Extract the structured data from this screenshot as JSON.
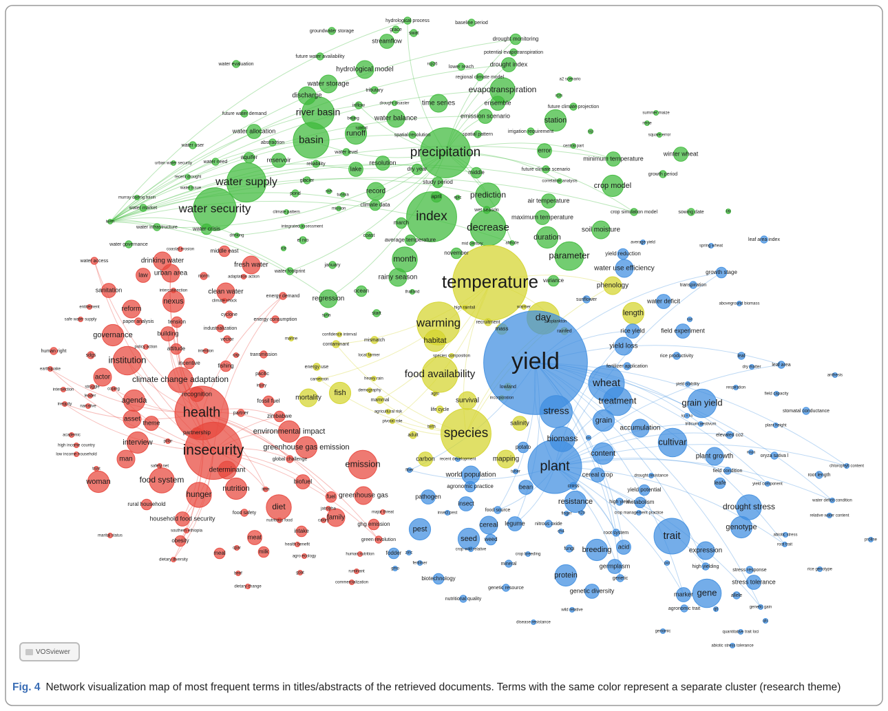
{
  "network": {
    "clusters": [
      {
        "color": "#e8463c",
        "terms": [
          "water access",
          "coastal erosion",
          "middle east",
          "drinking water",
          "fresh water",
          "law",
          "urban area",
          "norm",
          "adaptation action",
          "sanitation",
          "interconnection",
          "clean water",
          "energy demand",
          "reform",
          "nexus",
          "climate shock",
          "entitlement",
          "paper analysis",
          "tension",
          "cyclone",
          "energy consumption",
          "safe water supply",
          "industrialization",
          "governance",
          "building",
          "vector",
          "policy action",
          "attitude",
          "human right",
          "sdgs",
          "institution",
          "intention",
          "cap",
          "transmission",
          "incentive",
          "fishing",
          "earthquake",
          "actor",
          "climate change adaptation",
          "pacific",
          "injury",
          "struggle",
          "coping",
          "intersection",
          "leader",
          "agenda",
          "recognition",
          "fossil fuel",
          "inequity",
          "narrative",
          "health",
          "partner",
          "asset",
          "theme",
          "zimbabwe",
          "academic",
          "high income country",
          "interview",
          "pillar",
          "partnership",
          "environmental impact",
          "low income household",
          "insecurity",
          "greenhouse gas emission",
          "man",
          "safety net",
          "global challenge",
          "trust",
          "determinant",
          "woman",
          "food system",
          "nutrition",
          "item",
          "biofuel",
          "rural household",
          "hunger",
          "diet",
          "food safety",
          "household food security",
          "nutritious food",
          "southern ethiopia",
          "marital status",
          "intake",
          "meat",
          "obesity",
          "health benefit",
          "cpar",
          "meal",
          "milk",
          "agro ecology",
          "dietary diversity",
          "goat",
          "beef",
          "dietary change",
          "emission",
          "greenhouse gas",
          "fuel",
          "jatropha",
          "family",
          "calory",
          "major threat",
          "ghg emission",
          "green revolution",
          "human nutrition",
          "ruminant",
          "commercialization"
        ]
      },
      {
        "color": "#3dba3a",
        "terms": [
          "hydrological process",
          "grace",
          "swat",
          "groundwater storage",
          "baseline period",
          "streamflow",
          "drought monitoring",
          "potential evapotranspiration",
          "future water availability",
          "water evaluation",
          "rcp26",
          "lower reach",
          "drought index",
          "hydrological model",
          "regional climate model",
          "a2 scenario",
          "water storage",
          "tributary",
          "evapotranspiration",
          "rcm",
          "discharge",
          "drought disaster",
          "ensemble",
          "future climate projection",
          "inflow",
          "time series",
          "river basin",
          "future water demand",
          "beijing",
          "water balance",
          "emission scenario",
          "station",
          "summer maize",
          "water allocation",
          "runoff",
          "spatial",
          "spatial resolution",
          "spatial pattern",
          "irrigation requirement",
          "rmse",
          "ncp",
          "abstraction",
          "basin",
          "square error",
          "water user",
          "aquifer",
          "reservoir",
          "water level",
          "reliability",
          "resolution",
          "precipitation",
          "error",
          "central part",
          "winter wheat",
          "minimum temperature",
          "urban water security",
          "water need",
          "glacier",
          "dry year",
          "lake",
          "middle",
          "future climate scenario",
          "growth period",
          "recent drought",
          "water supply",
          "study period",
          "correlation analysis",
          "crop model",
          "water issue",
          "pond",
          "rwh",
          "record",
          "prediction",
          "murray darling basin",
          "tunisia",
          "april",
          "epic",
          "air temperature",
          "climate data",
          "wet season",
          "water market",
          "mission",
          "water security",
          "climate pattern",
          "crop simulation model",
          "sowing date",
          "lai",
          "index",
          "iwrm",
          "maximum temperature",
          "water infrastructure",
          "water crisis",
          "integrated assessment",
          "march",
          "decrease",
          "soil moisture",
          "drinking",
          "coast",
          "el nio",
          "average temperature",
          "duration",
          "mid century",
          "altitude",
          "water governance",
          "ice",
          "november",
          "parameter",
          "month",
          "water footprint",
          "january",
          "rainy season",
          "variance",
          "thailand",
          "ocean",
          "regression",
          "start",
          "syria"
        ]
      },
      {
        "color": "#d4d42c",
        "terms": [
          "temperature",
          "warming",
          "day",
          "high rainfall",
          "recruitment",
          "warmer",
          "zooplankton",
          "habitat",
          "mass",
          "rainfed",
          "confidence interval",
          "marine",
          "contaminant",
          "mismatch",
          "local farmer",
          "species composition",
          "energy use",
          "food availability",
          "cameroon",
          "heavy rain",
          "lowland",
          "mortality",
          "fish",
          "demography",
          "mammal",
          "agro",
          "survival",
          "incorporation",
          "life cycle",
          "agricultural risk",
          "pivotal role",
          "species",
          "salinity",
          "adult",
          "birth",
          "length",
          "phenology",
          "mapping",
          "carbon"
        ]
      },
      {
        "color": "#3f8ee0",
        "terms": [
          "yield",
          "average yield",
          "spring wheat",
          "leaf area index",
          "yield reduction",
          "water use efficiency",
          "growth stage",
          "transpiration",
          "sunflower",
          "water deficit",
          "aboveground biomass",
          "noe",
          "rice yield",
          "field experiment",
          "yield loss",
          "leaf",
          "rice productivity",
          "dry matter",
          "leaf area",
          "anthesis",
          "fertilizer application",
          "wheat",
          "yield stability",
          "respiration",
          "treatment",
          "grain yield",
          "field capacity",
          "stress",
          "grain",
          "kg n ha",
          "triticum aestivum",
          "stomatal conductance",
          "accumulation",
          "plant height",
          "biomass",
          "soc",
          "elevated co2",
          "cultivar",
          "content",
          "plant growth",
          "oryza sativa l",
          "mapa",
          "chlorophyll content",
          "potato",
          "plant",
          "field condition",
          "root length",
          "recent development",
          "fiber",
          "tuber",
          "world population",
          "cereal crop",
          "drought resistance",
          "leafe",
          "yield component",
          "agronomic practice",
          "cross",
          "bean",
          "yield potential",
          "pathogen",
          "water deficit condition",
          "resistance",
          "metabolism",
          "high yield",
          "insect",
          "drought stress",
          "food source",
          "insect pest",
          "finger",
          "n2o",
          "crop management practice",
          "relative water content",
          "legume",
          "nitrous oxide",
          "pest",
          "cereal",
          "ch4",
          "genotype",
          "root system",
          "trait",
          "abiotic stress",
          "seed",
          "weed",
          "proline",
          "root trait",
          "crop wild relative",
          "fodder",
          "zinc",
          "crop breeding",
          "breeding",
          "acid",
          "fungi",
          "expression",
          "mineral",
          "fertiliser",
          "germplasm",
          "high yielding",
          "pod",
          "stress response",
          "rice genotype",
          "gmo",
          "protein",
          "genetic",
          "biotechnology",
          "genetic diversity",
          "genetic resource",
          "stress tolerance",
          "gene",
          "marker",
          "allele",
          "nutritional quality",
          "wild relative",
          "agronomic trait",
          "qtl",
          "genetic gain",
          "qtls",
          "disease resistance",
          "genomic",
          "quantitative trait loci",
          "abiotic stress tolerance"
        ]
      }
    ]
  },
  "badge": "VOSviewer",
  "caption": {
    "label": "Fig. 4",
    "text": "Network visualization map of most frequent terms in titles/abstracts of the retrieved documents. Terms with the same color represent a separate cluster (research theme)"
  }
}
